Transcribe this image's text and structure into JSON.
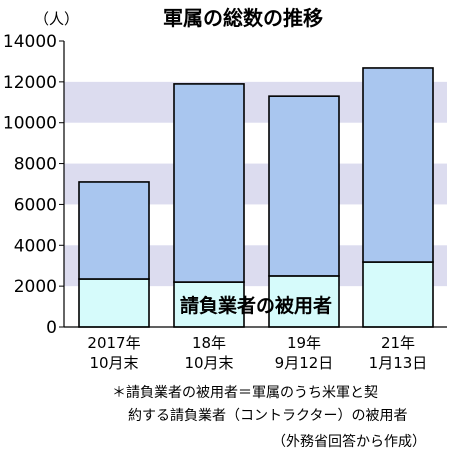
{
  "chart_data": {
    "type": "bar",
    "stacked": true,
    "title": "軍属の総数の推移",
    "unit_label": "（人）",
    "categories": [
      [
        "2017年",
        "10月末"
      ],
      [
        "18年",
        "10月末"
      ],
      [
        "19年",
        "9月12日"
      ],
      [
        "21年",
        "1月13日"
      ]
    ],
    "series": [
      {
        "name": "請負業者の被用者",
        "values": [
          2350,
          2200,
          2500,
          3180
        ],
        "color": "#d6fbfb"
      },
      {
        "name": "",
        "values": [
          4750,
          9700,
          8800,
          9500
        ],
        "color": "#a9c6ef"
      }
    ],
    "totals": [
      7100,
      11900,
      11300,
      12680
    ],
    "ylim": [
      0,
      14000
    ],
    "yticks": [
      "0",
      "2000",
      "4000",
      "6000",
      "8000",
      "10000",
      "12000",
      "14000"
    ],
    "grid_band_color": "#dcdcef",
    "legend_placement": "inside-bottom"
  },
  "footnotes": {
    "definition_line1": "＊請負業者の被用者＝軍属のうち米軍と契",
    "definition_line2": "約する請負業者（コントラクター）の被用者",
    "source": "（外務省回答から作成）"
  }
}
